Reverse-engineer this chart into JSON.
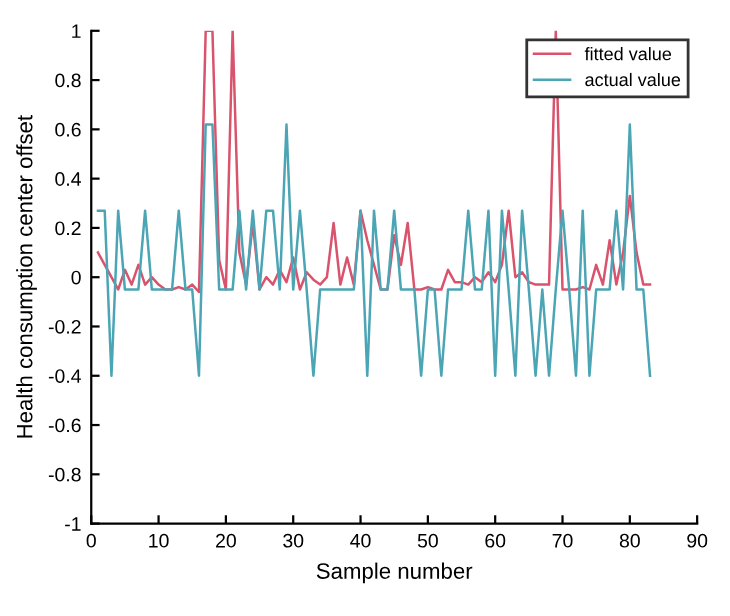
{
  "chart_data": {
    "type": "line",
    "xlabel": "Sample number",
    "ylabel": "Health consumption center offset",
    "x": [
      1,
      2,
      3,
      4,
      5,
      6,
      7,
      8,
      9,
      10,
      11,
      12,
      13,
      14,
      15,
      16,
      17,
      18,
      19,
      20,
      21,
      22,
      23,
      24,
      25,
      26,
      27,
      28,
      29,
      30,
      31,
      32,
      33,
      34,
      35,
      36,
      37,
      38,
      39,
      40,
      41,
      42,
      43,
      44,
      45,
      46,
      47,
      48,
      49,
      50,
      51,
      52,
      53,
      54,
      55,
      56,
      57,
      58,
      59,
      60,
      61,
      62,
      63,
      64,
      65,
      66,
      67,
      68,
      69,
      70,
      71,
      72,
      73,
      74,
      75,
      76,
      77,
      78,
      79,
      80,
      81,
      82,
      83
    ],
    "series": [
      {
        "name": "fitted value",
        "color": "#d9536d",
        "values": [
          0.1,
          0.05,
          0,
          -0.05,
          0.03,
          -0.03,
          0.05,
          -0.03,
          0,
          -0.03,
          -0.05,
          -0.05,
          -0.04,
          -0.05,
          -0.03,
          -0.06,
          1,
          1,
          0.07,
          -0.05,
          1,
          0.1,
          -0.03,
          0.22,
          -0.05,
          0,
          -0.03,
          0.03,
          -0.02,
          0.08,
          -0.05,
          0.02,
          -0.01,
          -0.03,
          0,
          0.22,
          -0.03,
          0.08,
          -0.03,
          0.27,
          0.15,
          0.05,
          -0.05,
          -0.05,
          0.17,
          0.05,
          0.22,
          -0.05,
          -0.05,
          -0.04,
          -0.05,
          -0.05,
          0.03,
          -0.02,
          -0.02,
          -0.03,
          0,
          -0.02,
          0.02,
          -0.02,
          0.05,
          0.27,
          0,
          0.02,
          -0.02,
          -0.03,
          -0.03,
          -0.03,
          1,
          -0.05,
          -0.05,
          -0.05,
          -0.04,
          -0.05,
          0.05,
          -0.03,
          0.15,
          -0.03,
          0.1,
          0.33,
          0.1,
          -0.03,
          -0.03
        ]
      },
      {
        "name": "actual value",
        "color": "#4ba5b5",
        "values": [
          0.27,
          0.27,
          -0.4,
          0.27,
          -0.05,
          -0.05,
          -0.05,
          0.27,
          -0.05,
          -0.05,
          -0.05,
          -0.05,
          0.27,
          -0.05,
          -0.05,
          -0.4,
          0.62,
          0.62,
          -0.05,
          -0.05,
          -0.05,
          0.27,
          -0.05,
          0.27,
          -0.05,
          0.27,
          0.27,
          -0.05,
          0.62,
          -0.05,
          0.27,
          -0.05,
          -0.4,
          -0.05,
          -0.05,
          -0.05,
          -0.05,
          -0.05,
          -0.05,
          0.27,
          -0.4,
          0.27,
          -0.05,
          -0.05,
          0.27,
          -0.05,
          -0.05,
          -0.05,
          -0.4,
          -0.05,
          -0.05,
          -0.4,
          -0.05,
          -0.05,
          -0.05,
          0.27,
          -0.05,
          -0.05,
          0.27,
          -0.4,
          0.27,
          -0.05,
          -0.4,
          0.27,
          -0.05,
          -0.4,
          -0.05,
          -0.4,
          -0.05,
          0.27,
          -0.05,
          -0.4,
          0.27,
          -0.4,
          -0.05,
          -0.05,
          -0.05,
          0.27,
          -0.05,
          0.62,
          -0.05,
          -0.05,
          -0.4
        ]
      }
    ],
    "xlim": [
      0,
      90
    ],
    "xticks": [
      0,
      10,
      20,
      30,
      40,
      50,
      60,
      70,
      80,
      90
    ],
    "ylim": [
      -1,
      1
    ],
    "yticks": [
      -1,
      -0.8,
      -0.6,
      -0.4,
      -0.2,
      0,
      0.2,
      0.4,
      0.6,
      0.8,
      1
    ],
    "grid": false,
    "legend": "top right",
    "marker": "none",
    "line_style": "solid"
  }
}
